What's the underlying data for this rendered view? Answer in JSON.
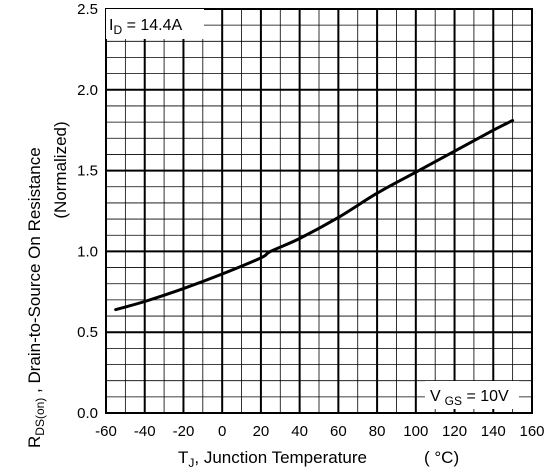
{
  "chart_data": {
    "type": "line",
    "title": "",
    "xlabel": {
      "main": "T",
      "sub": "J",
      "rest": ", Junction Temperature",
      "unit": "( °C)"
    },
    "ylabel": {
      "line1": "R",
      "line1_sub": "DS(on)",
      "line1_rest": " , Drain-to-Source On Resistance",
      "line2": "(Normalized)"
    },
    "xlim": [
      -60,
      160
    ],
    "ylim": [
      0.0,
      2.5
    ],
    "x_ticks": [
      -60,
      -40,
      -20,
      0,
      20,
      40,
      60,
      80,
      100,
      120,
      140,
      160
    ],
    "x_tick_labels": [
      "-60",
      "-40",
      "-20",
      "0",
      "20",
      "40",
      "60",
      "80",
      "100",
      "120",
      "140",
      "160"
    ],
    "y_ticks": [
      0.0,
      0.5,
      1.0,
      1.5,
      2.0,
      2.5
    ],
    "y_tick_labels": [
      "0.0",
      "0.5",
      "1.0",
      "1.5",
      "2.0",
      "2.5"
    ],
    "grid": true,
    "annotations": {
      "top_left": {
        "main": "I",
        "sub": "D",
        "rest": " = 14.4A"
      },
      "bottom_right": {
        "main": "V",
        "sub": "GS",
        "rest": " = 10V"
      }
    },
    "series": [
      {
        "x": [
          -55,
          -40,
          -20,
          0,
          20,
          25,
          40,
          60,
          80,
          100,
          120,
          140,
          150
        ],
        "y": [
          0.64,
          0.69,
          0.77,
          0.86,
          0.96,
          1.0,
          1.08,
          1.21,
          1.36,
          1.49,
          1.62,
          1.75,
          1.81
        ]
      }
    ],
    "colors": {
      "line": "#000000",
      "grid": "#000000",
      "background": "#ffffff"
    }
  }
}
